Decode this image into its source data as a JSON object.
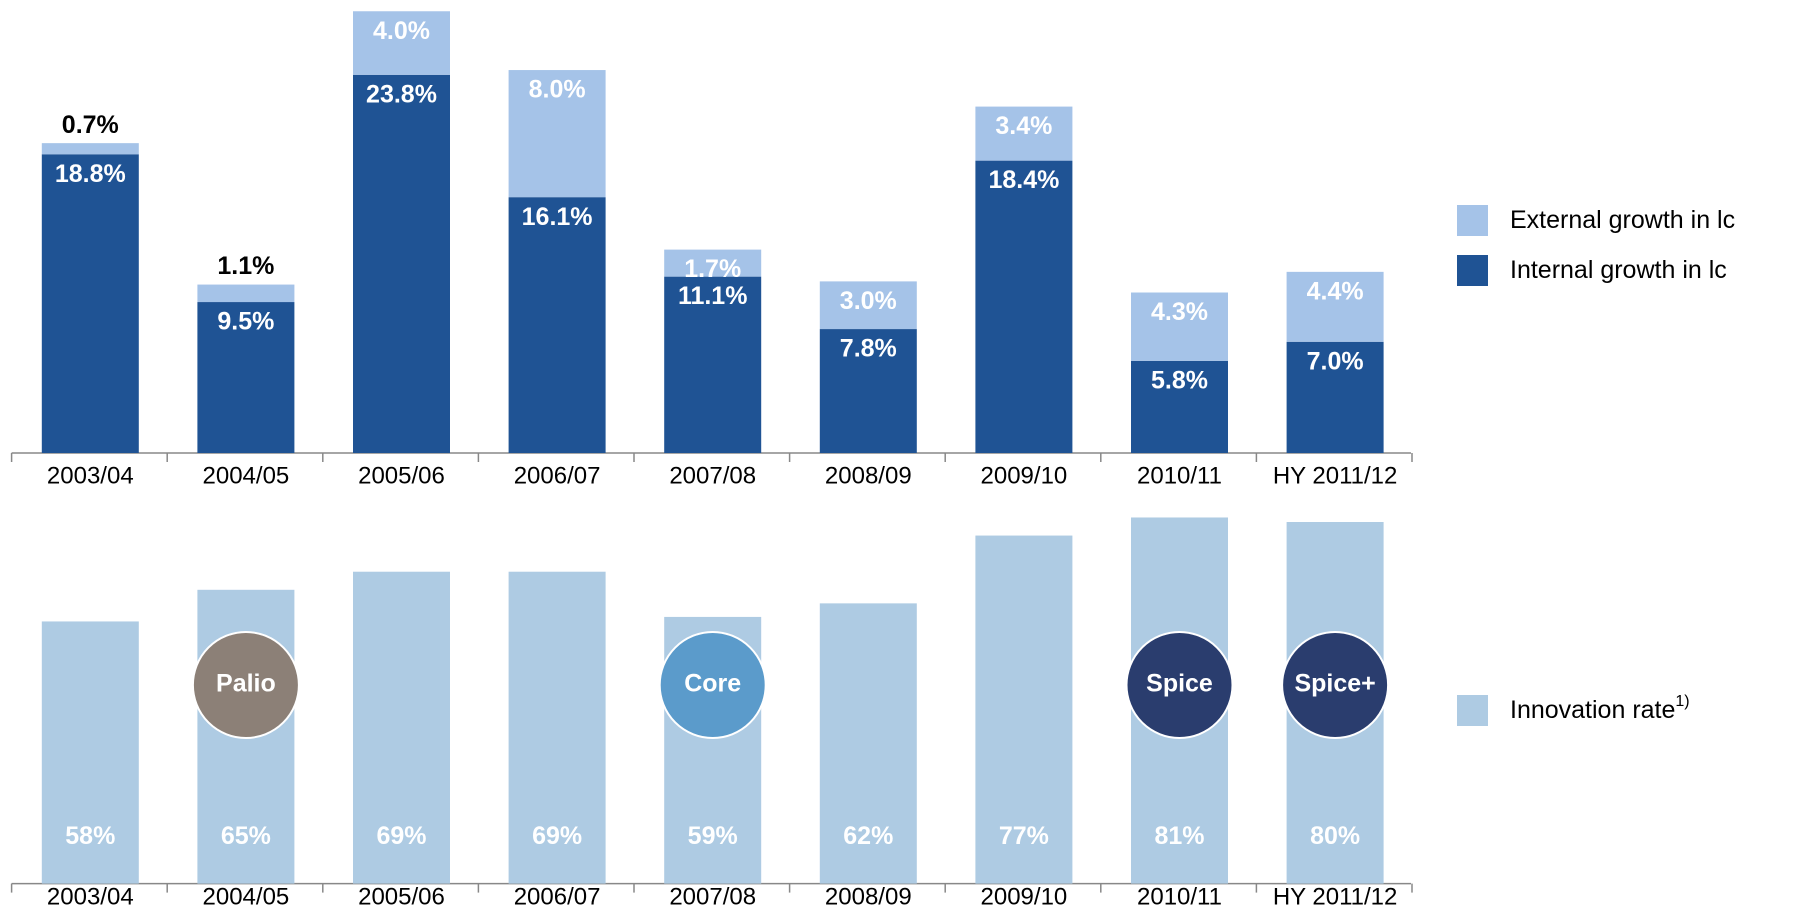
{
  "chart_data": [
    {
      "type": "bar",
      "stacked": true,
      "categories": [
        "2003/04",
        "2004/05",
        "2005/06",
        "2006/07",
        "2007/08",
        "2008/09",
        "2009/10",
        "2010/11",
        "HY 2011/12"
      ],
      "series": [
        {
          "name": "Internal growth in lc",
          "color": "#1f5394",
          "values": [
            18.8,
            9.5,
            23.8,
            16.1,
            11.1,
            7.8,
            18.4,
            5.8,
            7.0
          ],
          "value_labels": [
            "18.8%",
            "9.5%",
            "23.8%",
            "16.1%",
            "11.1%",
            "7.8%",
            "18.4%",
            "5.8%",
            "7.0%"
          ]
        },
        {
          "name": "External growth in lc",
          "color": "#a5c3e8",
          "values": [
            0.7,
            1.1,
            4.0,
            8.0,
            1.7,
            3.0,
            3.4,
            4.3,
            4.4
          ],
          "value_labels": [
            "0.7%",
            "1.1%",
            "4.0%",
            "8.0%",
            "1.7%",
            "3.0%",
            "3.4%",
            "4.3%",
            "4.4%"
          ]
        }
      ]
    },
    {
      "type": "bar",
      "categories": [
        "2003/04",
        "2004/05",
        "2005/06",
        "2006/07",
        "2007/08",
        "2008/09",
        "2009/10",
        "2010/11",
        "HY 2011/12"
      ],
      "series": [
        {
          "name": "Innovation rate",
          "name_note": "1)",
          "color": "#aecbe3",
          "values": [
            58,
            65,
            69,
            69,
            59,
            62,
            77,
            81,
            80
          ],
          "value_labels": [
            "58%",
            "65%",
            "69%",
            "69%",
            "59%",
            "62%",
            "77%",
            "81%",
            "80%"
          ]
        }
      ],
      "annotations": [
        {
          "text": "Palio",
          "category": "2004/05",
          "color": "#8c8077"
        },
        {
          "text": "Core",
          "category": "2007/08",
          "color": "#5b9bcb"
        },
        {
          "text": "Spice",
          "category": "2010/11",
          "color": "#2a3d6e"
        },
        {
          "text": "Spice+",
          "category": "HY 2011/12",
          "color": "#2a3d6e"
        }
      ]
    }
  ]
}
